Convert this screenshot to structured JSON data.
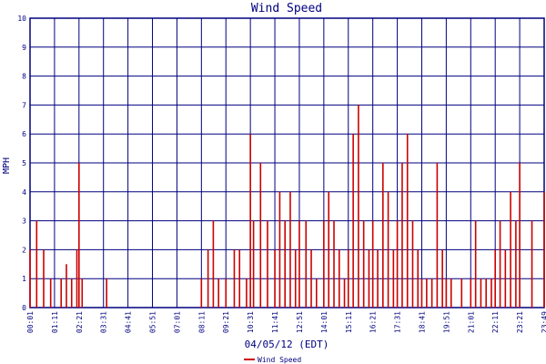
{
  "chart_data": {
    "type": "bar",
    "title": "Wind Speed",
    "xlabel": "04/05/12 (EDT)",
    "ylabel": "MPH",
    "ylim": [
      0,
      10
    ],
    "y_ticks": [
      "0",
      "1",
      "2",
      "3",
      "4",
      "5",
      "6",
      "7",
      "8",
      "9",
      "10"
    ],
    "x_ticks": [
      "00:01",
      "01:11",
      "02:21",
      "03:31",
      "04:41",
      "05:51",
      "07:01",
      "08:11",
      "09:21",
      "10:31",
      "11:41",
      "12:51",
      "14:01",
      "15:11",
      "16:21",
      "17:31",
      "18:41",
      "19:51",
      "21:01",
      "22:11",
      "23:21",
      "23:49"
    ],
    "grid": true,
    "legend_position": "bottom",
    "series": [
      {
        "name": "Wind Speed",
        "color": "#cc0000",
        "x": [
          "00:01",
          "00:20",
          "00:40",
          "01:00",
          "01:30",
          "01:45",
          "02:00",
          "02:15",
          "02:21",
          "02:30",
          "03:00",
          "03:20",
          "03:40",
          "04:00",
          "04:40",
          "05:20",
          "06:00",
          "06:40",
          "07:20",
          "08:00",
          "08:11",
          "08:30",
          "08:45",
          "09:00",
          "09:21",
          "09:45",
          "10:00",
          "10:20",
          "10:31",
          "10:40",
          "11:00",
          "11:20",
          "11:41",
          "11:55",
          "12:10",
          "12:25",
          "12:40",
          "12:51",
          "13:10",
          "13:25",
          "13:40",
          "14:01",
          "14:15",
          "14:30",
          "14:45",
          "15:00",
          "15:11",
          "15:25",
          "15:40",
          "15:55",
          "16:10",
          "16:21",
          "16:35",
          "16:50",
          "17:05",
          "17:20",
          "17:31",
          "17:45",
          "18:00",
          "18:15",
          "18:30",
          "18:41",
          "18:55",
          "19:10",
          "19:25",
          "19:40",
          "19:51",
          "20:05",
          "20:20",
          "20:35",
          "20:50",
          "21:01",
          "21:15",
          "21:30",
          "21:45",
          "22:00",
          "22:11",
          "22:25",
          "22:40",
          "22:55",
          "23:10",
          "23:21",
          "23:35",
          "23:49"
        ],
        "values": [
          2,
          3,
          2,
          1,
          1,
          1.5,
          1,
          2,
          5,
          1,
          0,
          0,
          1,
          0,
          0,
          0,
          0,
          0,
          0,
          0,
          1,
          2,
          3,
          1,
          1,
          2,
          2,
          1,
          6,
          3,
          5,
          3,
          2,
          4,
          3,
          4,
          2,
          3,
          3,
          2,
          1,
          3,
          4,
          3,
          2,
          1,
          2,
          6,
          7,
          3,
          2,
          3,
          2,
          5,
          4,
          2,
          3,
          5,
          6,
          3,
          2,
          1,
          1,
          1,
          5,
          2,
          1,
          1,
          0,
          1,
          0,
          1,
          3,
          1,
          1,
          1,
          2,
          3,
          2,
          4,
          3,
          5,
          3,
          4
        ]
      }
    ]
  }
}
